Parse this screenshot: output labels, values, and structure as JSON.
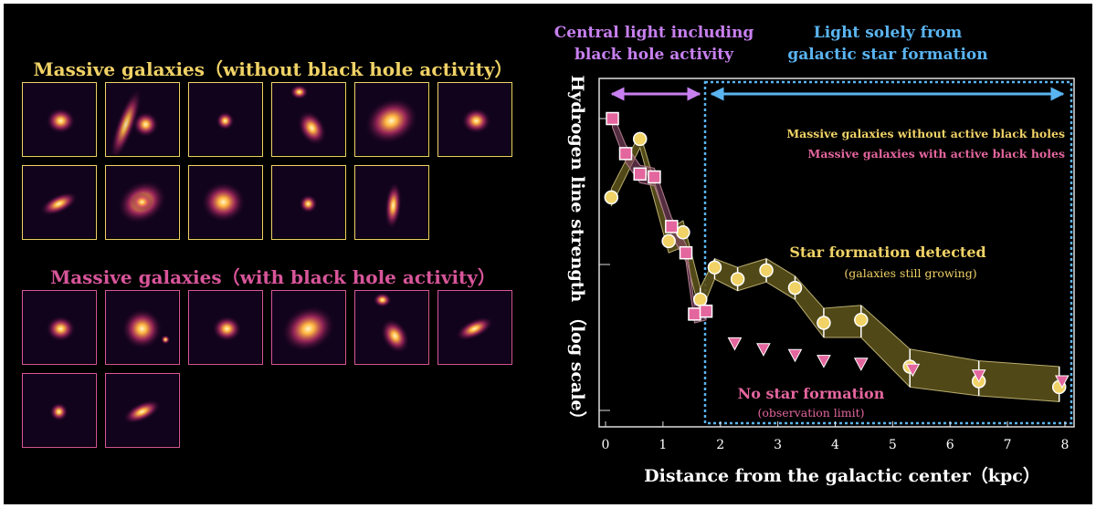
{
  "panels": {
    "top_heading": "Massive galaxies（without black hole activity）",
    "bottom_heading": "Massive galaxies（with black hole activity）",
    "colors": {
      "no_agn": "#f0d266",
      "agn": "#d8559a"
    },
    "top_images": [
      {
        "name": "galaxy-image-1",
        "shape": "compact"
      },
      {
        "name": "galaxy-image-2",
        "shape": "streak"
      },
      {
        "name": "galaxy-image-3",
        "shape": "point"
      },
      {
        "name": "galaxy-image-4",
        "shape": "pair"
      },
      {
        "name": "galaxy-image-5",
        "shape": "large-diffuse"
      },
      {
        "name": "galaxy-image-6",
        "shape": "compact"
      },
      {
        "name": "galaxy-image-7",
        "shape": "elongated"
      },
      {
        "name": "galaxy-image-8",
        "shape": "spiral"
      },
      {
        "name": "galaxy-image-9",
        "shape": "diffuse"
      },
      {
        "name": "galaxy-image-10",
        "shape": "point"
      },
      {
        "name": "galaxy-image-11",
        "shape": "vertical"
      }
    ],
    "bottom_images": [
      {
        "name": "agn-galaxy-image-1",
        "shape": "compact"
      },
      {
        "name": "agn-galaxy-image-2",
        "shape": "bright"
      },
      {
        "name": "agn-galaxy-image-3",
        "shape": "compact"
      },
      {
        "name": "agn-galaxy-image-4",
        "shape": "large-diffuse"
      },
      {
        "name": "agn-galaxy-image-5",
        "shape": "pair"
      },
      {
        "name": "agn-galaxy-image-6",
        "shape": "elongated"
      },
      {
        "name": "agn-galaxy-image-7",
        "shape": "point"
      },
      {
        "name": "agn-galaxy-image-8",
        "shape": "elongated"
      }
    ]
  },
  "chart_data": {
    "type": "line",
    "title": "",
    "xlabel": "Distance from the galactic center（kpc）",
    "ylabel": "Hydrogen line strength （log scale）",
    "x_ticks": [
      0,
      1,
      2,
      3,
      4,
      5,
      6,
      7,
      8
    ],
    "xlim": [
      0,
      8.2
    ],
    "ylim": [
      0,
      1
    ],
    "y_scale": "log (unlabeled, relative)",
    "regions": {
      "central": {
        "label_line1": "Central light including",
        "label_line2": "black hole activity",
        "x_range": [
          0.1,
          1.7
        ],
        "color": "#c880f0"
      },
      "outer": {
        "label_line1": "Light solely from",
        "label_line2": "galactic star formation",
        "x_range": [
          1.75,
          8.0
        ],
        "color": "#5ab4f0"
      }
    },
    "legend": {
      "position": "top-right",
      "entries": [
        {
          "label": "Massive galaxies without active black holes",
          "color": "#f0d266"
        },
        {
          "label": "Massive galaxies with active black holes",
          "color": "#e4669e"
        }
      ]
    },
    "annotations": {
      "star_formation": "Star formation detected",
      "star_formation_sub": "(galaxies still growing)",
      "no_star_formation": "No star formation",
      "no_star_formation_sub": "(observation limit)"
    },
    "series": [
      {
        "name": "Massive galaxies without active black holes",
        "marker": "circle",
        "color": "#f0d266",
        "points": [
          {
            "x": 0.1,
            "y": 0.73
          },
          {
            "x": 0.6,
            "y": 0.93
          },
          {
            "x": 1.1,
            "y": 0.58
          },
          {
            "x": 1.35,
            "y": 0.61
          },
          {
            "x": 1.65,
            "y": 0.38
          },
          {
            "x": 1.9,
            "y": 0.49
          },
          {
            "x": 2.3,
            "y": 0.45
          },
          {
            "x": 2.8,
            "y": 0.48
          },
          {
            "x": 3.3,
            "y": 0.42
          },
          {
            "x": 3.8,
            "y": 0.3
          },
          {
            "x": 4.45,
            "y": 0.31
          },
          {
            "x": 5.3,
            "y": 0.15
          },
          {
            "x": 6.5,
            "y": 0.1
          },
          {
            "x": 7.9,
            "y": 0.08
          }
        ],
        "band_upper": [
          0.76,
          0.95,
          0.62,
          0.65,
          0.42,
          0.52,
          0.49,
          0.52,
          0.46,
          0.35,
          0.36,
          0.21,
          0.17,
          0.15
        ],
        "band_lower": [
          0.7,
          0.9,
          0.54,
          0.56,
          0.33,
          0.45,
          0.41,
          0.44,
          0.38,
          0.25,
          0.25,
          0.08,
          0.05,
          0.03
        ]
      },
      {
        "name": "Massive galaxies with active black holes",
        "marker": "square",
        "color": "#e4669e",
        "points": [
          {
            "x": 0.12,
            "y": 1.0
          },
          {
            "x": 0.35,
            "y": 0.88
          },
          {
            "x": 0.6,
            "y": 0.81
          },
          {
            "x": 0.85,
            "y": 0.8
          },
          {
            "x": 1.15,
            "y": 0.63
          },
          {
            "x": 1.4,
            "y": 0.54
          },
          {
            "x": 1.55,
            "y": 0.33
          },
          {
            "x": 1.75,
            "y": 0.34
          }
        ]
      },
      {
        "name": "Upper limits (active black holes)",
        "marker": "triangle-down",
        "color": "#e4669e",
        "points": [
          {
            "x": 2.25,
            "y": 0.23
          },
          {
            "x": 2.75,
            "y": 0.21
          },
          {
            "x": 3.3,
            "y": 0.19
          },
          {
            "x": 3.8,
            "y": 0.17
          },
          {
            "x": 4.45,
            "y": 0.16
          },
          {
            "x": 5.35,
            "y": 0.14
          },
          {
            "x": 6.5,
            "y": 0.12
          },
          {
            "x": 7.95,
            "y": 0.1
          }
        ]
      }
    ]
  }
}
